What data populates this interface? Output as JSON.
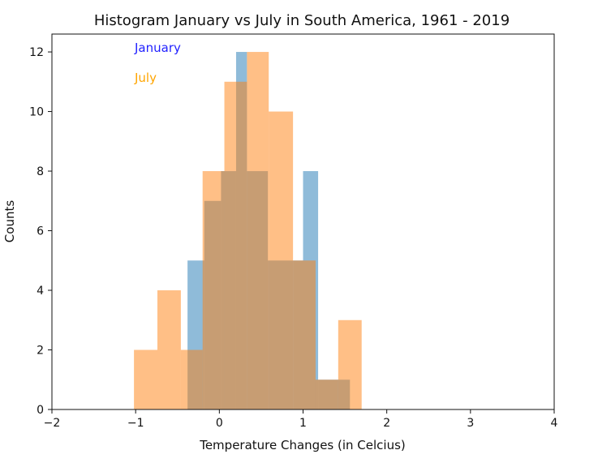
{
  "chart_data": {
    "type": "bar",
    "title": "Histogram January vs July in South America, 1961 - 2019",
    "xlabel": "Temperature Changes (in Celcius)",
    "ylabel": "Counts",
    "xlim": [
      -2,
      4
    ],
    "ylim": [
      0,
      12.6
    ],
    "xticks": [
      -2,
      -1,
      0,
      1,
      2,
      3,
      4
    ],
    "yticks": [
      0,
      2,
      4,
      6,
      8,
      10,
      12
    ],
    "grid": false,
    "legend": "none",
    "annotations": [
      {
        "text": "January",
        "color": "#1f1fff"
      },
      {
        "text": "July",
        "color": "#ffa500"
      }
    ],
    "series": [
      {
        "name": "January",
        "color": "#1f77b4",
        "opacity": 0.5,
        "bins": [
          {
            "x0": -0.38,
            "x1": -0.18,
            "value": 5
          },
          {
            "x0": -0.18,
            "x1": 0.02,
            "value": 7
          },
          {
            "x0": 0.02,
            "x1": 0.2,
            "value": 8
          },
          {
            "x0": 0.2,
            "x1": 0.33,
            "value": 12
          },
          {
            "x0": 0.33,
            "x1": 0.58,
            "value": 8
          },
          {
            "x0": 0.58,
            "x1": 0.88,
            "value": 5
          },
          {
            "x0": 0.88,
            "x1": 1.0,
            "value": 5
          },
          {
            "x0": 1.0,
            "x1": 1.18,
            "value": 8
          },
          {
            "x0": 1.18,
            "x1": 1.56,
            "value": 1
          }
        ]
      },
      {
        "name": "July",
        "color": "#ff7f0e",
        "opacity": 0.5,
        "bins": [
          {
            "x0": -1.02,
            "x1": -0.74,
            "value": 2
          },
          {
            "x0": -0.74,
            "x1": -0.46,
            "value": 4
          },
          {
            "x0": -0.46,
            "x1": -0.2,
            "value": 2
          },
          {
            "x0": -0.2,
            "x1": 0.06,
            "value": 8
          },
          {
            "x0": 0.06,
            "x1": 0.33,
            "value": 11
          },
          {
            "x0": 0.33,
            "x1": 0.59,
            "value": 12
          },
          {
            "x0": 0.59,
            "x1": 0.88,
            "value": 10
          },
          {
            "x0": 0.88,
            "x1": 1.15,
            "value": 5
          },
          {
            "x0": 1.15,
            "x1": 1.42,
            "value": 1
          },
          {
            "x0": 1.42,
            "x1": 1.7,
            "value": 3
          }
        ]
      }
    ]
  }
}
